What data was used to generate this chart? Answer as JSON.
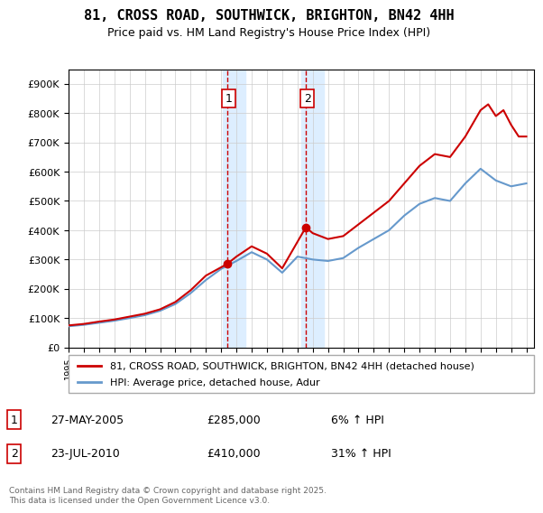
{
  "title": "81, CROSS ROAD, SOUTHWICK, BRIGHTON, BN42 4HH",
  "subtitle": "Price paid vs. HM Land Registry's House Price Index (HPI)",
  "legend_line1": "81, CROSS ROAD, SOUTHWICK, BRIGHTON, BN42 4HH (detached house)",
  "legend_line2": "HPI: Average price, detached house, Adur",
  "transaction1_label": "1",
  "transaction1_date": "27-MAY-2005",
  "transaction1_price": "£285,000",
  "transaction1_hpi": "6% ↑ HPI",
  "transaction2_label": "2",
  "transaction2_date": "23-JUL-2010",
  "transaction2_price": "£410,000",
  "transaction2_hpi": "31% ↑ HPI",
  "footer": "Contains HM Land Registry data © Crown copyright and database right 2025.\nThis data is licensed under the Open Government Licence v3.0.",
  "red_color": "#cc0000",
  "blue_color": "#6699cc",
  "background_color": "#ffffff",
  "grid_color": "#cccccc",
  "highlight_bg": "#ddeeff",
  "ylim": [
    0,
    950000
  ],
  "yticks": [
    0,
    100000,
    200000,
    300000,
    400000,
    500000,
    600000,
    700000,
    800000,
    900000
  ],
  "year_start": 1995,
  "year_end": 2025,
  "transaction1_year": 2005.4,
  "transaction2_year": 2010.55,
  "red_x": [
    1995,
    1996,
    1997,
    1998,
    1999,
    2000,
    2001,
    2002,
    2003,
    2004,
    2005.4,
    2006,
    2007,
    2008,
    2009,
    2010.55,
    2011,
    2012,
    2013,
    2014,
    2015,
    2016,
    2017,
    2018,
    2019,
    2020,
    2021,
    2022,
    2022.5,
    2023,
    2023.5,
    2024,
    2024.5,
    2025
  ],
  "red_y": [
    75000,
    80000,
    88000,
    95000,
    105000,
    115000,
    130000,
    155000,
    195000,
    245000,
    285000,
    310000,
    345000,
    320000,
    270000,
    410000,
    390000,
    370000,
    380000,
    420000,
    460000,
    500000,
    560000,
    620000,
    660000,
    650000,
    720000,
    810000,
    830000,
    790000,
    810000,
    760000,
    720000,
    720000
  ],
  "blue_x": [
    1995,
    1996,
    1997,
    1998,
    1999,
    2000,
    2001,
    2002,
    2003,
    2004,
    2005,
    2006,
    2007,
    2008,
    2009,
    2010,
    2011,
    2012,
    2013,
    2014,
    2015,
    2016,
    2017,
    2018,
    2019,
    2020,
    2021,
    2022,
    2023,
    2024,
    2025
  ],
  "blue_y": [
    72000,
    77000,
    84000,
    91000,
    100000,
    110000,
    125000,
    148000,
    185000,
    230000,
    268000,
    295000,
    325000,
    300000,
    255000,
    310000,
    300000,
    295000,
    305000,
    340000,
    370000,
    400000,
    450000,
    490000,
    510000,
    500000,
    560000,
    610000,
    570000,
    550000,
    560000
  ]
}
